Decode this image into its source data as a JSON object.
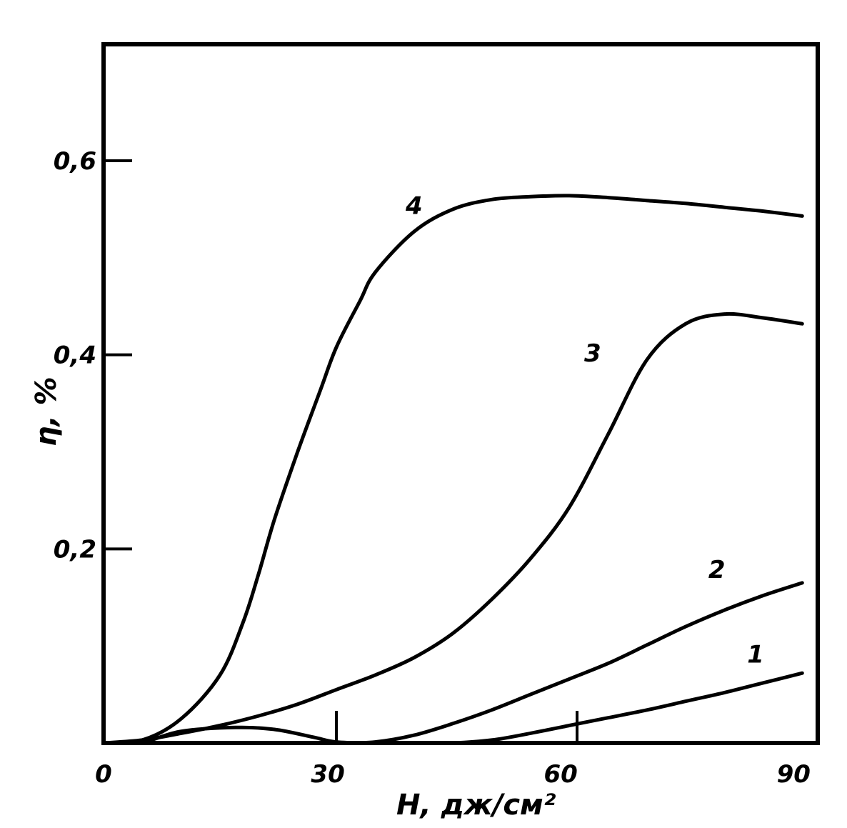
{
  "chart_data": {
    "type": "line",
    "xlabel": "H, дж/см²",
    "ylabel": "η, %",
    "xlim": [
      0,
      92
    ],
    "ylim": [
      0,
      0.72
    ],
    "x_ticks": [
      {
        "value": 0,
        "label": "0"
      },
      {
        "value": 30,
        "label": "30"
      },
      {
        "value": 60,
        "label": "60"
      },
      {
        "value": 90,
        "label": "90"
      }
    ],
    "y_ticks": [
      {
        "value": 0.2,
        "label": "0,2"
      },
      {
        "value": 0.4,
        "label": "0,4"
      },
      {
        "value": 0.6,
        "label": "0,6"
      }
    ],
    "grid": false,
    "series": [
      {
        "name": "1",
        "x": [
          0,
          5,
          10,
          17,
          22,
          27,
          30,
          35,
          40,
          45,
          50,
          55,
          60,
          65,
          70,
          75,
          80,
          85,
          90
        ],
        "y": [
          0,
          0.001,
          0.012,
          0.016,
          0.014,
          0.006,
          0.001,
          0.0,
          0.0,
          0.0,
          0.003,
          0.01,
          0.018,
          0.026,
          0.034,
          0.043,
          0.052,
          0.062,
          0.072
        ]
      },
      {
        "name": "2",
        "x": [
          0,
          10,
          20,
          30,
          35,
          40,
          45,
          50,
          55,
          60,
          65,
          70,
          75,
          80,
          85,
          90
        ],
        "y": [
          0,
          0.0,
          0.0,
          0.0,
          0.001,
          0.008,
          0.02,
          0.034,
          0.05,
          0.066,
          0.082,
          0.101,
          0.12,
          0.137,
          0.152,
          0.165
        ]
      },
      {
        "name": "3",
        "x": [
          0,
          5,
          10,
          15,
          20,
          25,
          30,
          35,
          40,
          45,
          50,
          55,
          60,
          65,
          70,
          75,
          80,
          85,
          90
        ],
        "y": [
          0,
          0.003,
          0.01,
          0.018,
          0.028,
          0.04,
          0.055,
          0.07,
          0.088,
          0.113,
          0.148,
          0.19,
          0.243,
          0.318,
          0.395,
          0.432,
          0.442,
          0.438,
          0.432
        ]
      },
      {
        "name": "4",
        "x": [
          0,
          5,
          10,
          15,
          18,
          20,
          22,
          25,
          28,
          30,
          33,
          35,
          40,
          45,
          50,
          55,
          60,
          65,
          70,
          75,
          80,
          85,
          90
        ],
        "y": [
          0,
          0.003,
          0.025,
          0.07,
          0.125,
          0.175,
          0.23,
          0.3,
          0.365,
          0.408,
          0.455,
          0.485,
          0.527,
          0.55,
          0.56,
          0.563,
          0.564,
          0.562,
          0.559,
          0.556,
          0.552,
          0.548,
          0.543
        ]
      }
    ],
    "series_labels": [
      {
        "text": "1",
        "x": 84,
        "y": 0.083
      },
      {
        "text": "2",
        "x": 79,
        "y": 0.17
      },
      {
        "text": "3",
        "x": 63,
        "y": 0.393
      },
      {
        "text": "4",
        "x": 40,
        "y": 0.545
      }
    ],
    "annotations": [
      {
        "type": "vertical-tick",
        "x": 30
      },
      {
        "type": "vertical-tick",
        "x": 61
      }
    ]
  }
}
